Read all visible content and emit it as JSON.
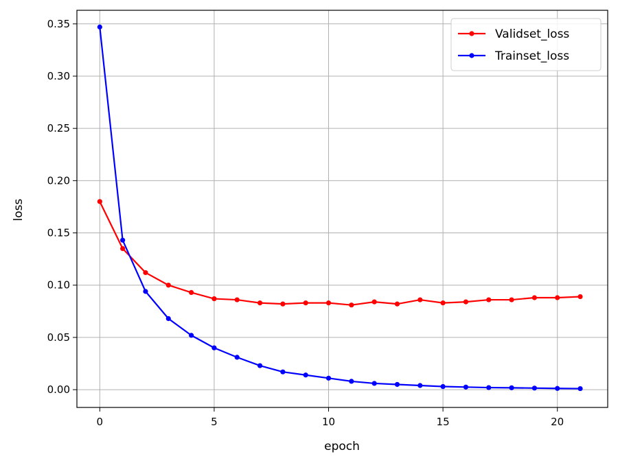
{
  "chart_data": {
    "type": "line",
    "title": "",
    "xlabel": "epoch",
    "ylabel": "loss",
    "xlim": [
      -1,
      22.2
    ],
    "ylim": [
      -0.017,
      0.363
    ],
    "xticks": [
      0,
      5,
      10,
      15,
      20
    ],
    "xtick_labels": [
      "0",
      "5",
      "10",
      "15",
      "20"
    ],
    "yticks": [
      0.0,
      0.05,
      0.1,
      0.15,
      0.2,
      0.25,
      0.3,
      0.35
    ],
    "ytick_labels": [
      "0.00",
      "0.05",
      "0.10",
      "0.15",
      "0.20",
      "0.25",
      "0.30",
      "0.35"
    ],
    "grid": true,
    "legend_position": "top-right",
    "x": [
      0,
      1,
      2,
      3,
      4,
      5,
      6,
      7,
      8,
      9,
      10,
      11,
      12,
      13,
      14,
      15,
      16,
      17,
      18,
      19,
      20,
      21
    ],
    "series": [
      {
        "name": "Validset_loss",
        "color": "#ff0000",
        "marker": "circle",
        "values": [
          0.18,
          0.135,
          0.112,
          0.1,
          0.093,
          0.087,
          0.086,
          0.083,
          0.082,
          0.083,
          0.083,
          0.081,
          0.084,
          0.082,
          0.086,
          0.083,
          0.084,
          0.086,
          0.086,
          0.088,
          0.088,
          0.089
        ]
      },
      {
        "name": "Trainset_loss",
        "color": "#0000ff",
        "marker": "circle",
        "values": [
          0.347,
          0.143,
          0.094,
          0.068,
          0.052,
          0.04,
          0.031,
          0.023,
          0.017,
          0.014,
          0.011,
          0.008,
          0.006,
          0.005,
          0.004,
          0.003,
          0.0025,
          0.002,
          0.0018,
          0.0015,
          0.0012,
          0.001
        ]
      }
    ]
  }
}
